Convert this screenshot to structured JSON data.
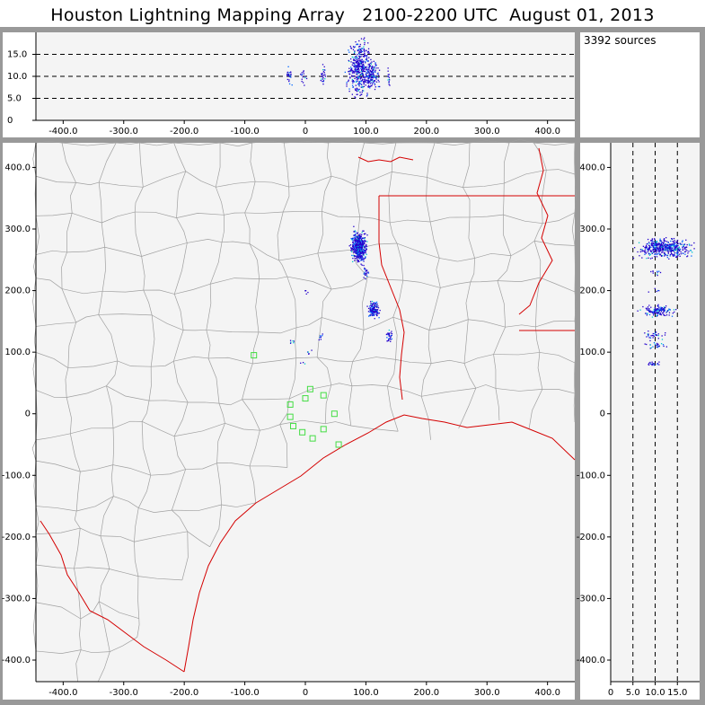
{
  "title": "Houston Lightning Mapping Array   2100-2200 UTC  August 01, 2013",
  "source_count_label": "3392 sources",
  "colors": {
    "frame": "#999999",
    "plot_bg": "#f4f4f4",
    "county_lines": "#a0a0a0",
    "boundary_lines": "#d40000",
    "station_markers": "#44dd44",
    "source_low": "#2200cc",
    "source_mid": "#0066ff",
    "source_high": "#00cccc"
  },
  "chart_data": [
    {
      "type": "scatter",
      "name_panel": "altitude-vs-east-west",
      "x_ticks": [
        "-400.0",
        "-300.0",
        "-200.0",
        "-100.0",
        "0",
        "100.0",
        "200.0",
        "300.0",
        "400.0"
      ],
      "y_ticks": [
        "0",
        "5.0",
        "10.0",
        "15.0"
      ],
      "xlim": [
        -445,
        445
      ],
      "ylim": [
        0,
        20
      ],
      "reference_lines_y": [
        5,
        10,
        15
      ],
      "clusters": [
        {
          "x": -28,
          "y": 10,
          "dx": 3,
          "dy": 1.5,
          "n": 25
        },
        {
          "x": -4,
          "y": 10,
          "dx": 3,
          "dy": 1.2,
          "n": 15
        },
        {
          "x": 28,
          "y": 10,
          "dx": 3,
          "dy": 1.5,
          "n": 25
        },
        {
          "x": 88,
          "y": 12,
          "dx": 12,
          "dy": 4,
          "n": 420
        },
        {
          "x": 110,
          "y": 10.5,
          "dx": 7,
          "dy": 2.2,
          "n": 140
        },
        {
          "x": 137,
          "y": 10,
          "dx": 2,
          "dy": 1.2,
          "n": 15
        }
      ]
    },
    {
      "type": "scatter",
      "name_panel": "plan-view",
      "x_ticks": [
        "-400.0",
        "-300.0",
        "-200.0",
        "-100.0",
        "0",
        "100.0",
        "200.0",
        "300.0",
        "400.0"
      ],
      "y_ticks": [
        "-400.0",
        "-300.0",
        "-200.0",
        "-100.0",
        "0",
        "100.0",
        "200.0",
        "300.0",
        "400.0"
      ],
      "xlim": [
        -445,
        445
      ],
      "ylim": [
        -435,
        440
      ],
      "stations": [
        {
          "x": -85,
          "y": 95
        },
        {
          "x": -25,
          "y": 15
        },
        {
          "x": -25,
          "y": -5
        },
        {
          "x": -20,
          "y": -20
        },
        {
          "x": -5,
          "y": -30
        },
        {
          "x": 0,
          "y": 25
        },
        {
          "x": 8,
          "y": 40
        },
        {
          "x": 12,
          "y": -40
        },
        {
          "x": 30,
          "y": -25
        },
        {
          "x": 30,
          "y": 30
        },
        {
          "x": 48,
          "y": 0
        },
        {
          "x": 55,
          "y": -50
        }
      ],
      "clusters": [
        {
          "x": 88,
          "y": 272,
          "dx": 8,
          "dy": 16,
          "n": 480
        },
        {
          "x": 112,
          "y": 170,
          "dx": 6,
          "dy": 8,
          "n": 140
        },
        {
          "x": 138,
          "y": 128,
          "dx": 3,
          "dy": 8,
          "n": 30
        },
        {
          "x": 98,
          "y": 230,
          "dx": 4,
          "dy": 6,
          "n": 20
        },
        {
          "x": 0,
          "y": 200,
          "dx": 2,
          "dy": 3,
          "n": 5
        },
        {
          "x": -25,
          "y": 120,
          "dx": 3,
          "dy": 5,
          "n": 6
        },
        {
          "x": 25,
          "y": 125,
          "dx": 4,
          "dy": 5,
          "n": 8
        },
        {
          "x": 5,
          "y": 100,
          "dx": 4,
          "dy": 4,
          "n": 5
        },
        {
          "x": -5,
          "y": 85,
          "dx": 3,
          "dy": 3,
          "n": 3
        }
      ]
    },
    {
      "type": "scatter",
      "name_panel": "north-south-vs-altitude",
      "x_ticks": [
        "0",
        "5.0",
        "10.0",
        "15.0"
      ],
      "y_ticks": [
        "-400.0",
        "-300.0",
        "-200.0",
        "-100.0",
        "0",
        "100.0",
        "200.0",
        "300.0",
        "400.0"
      ],
      "xlim": [
        0,
        20
      ],
      "ylim": [
        -435,
        440
      ],
      "reference_lines_x": [
        5,
        10,
        15
      ],
      "clusters": [
        {
          "x": 12,
          "y": 270,
          "dx": 3.8,
          "dy": 10,
          "n": 480
        },
        {
          "x": 10.5,
          "y": 168,
          "dx": 2.2,
          "dy": 6,
          "n": 140
        },
        {
          "x": 10,
          "y": 128,
          "dx": 1.8,
          "dy": 5,
          "n": 30
        },
        {
          "x": 10,
          "y": 112,
          "dx": 1.6,
          "dy": 3,
          "n": 25
        },
        {
          "x": 9.5,
          "y": 82,
          "dx": 1.2,
          "dy": 2,
          "n": 20
        },
        {
          "x": 10,
          "y": 200,
          "dx": 1,
          "dy": 3,
          "n": 5
        },
        {
          "x": 10,
          "y": 230,
          "dx": 1,
          "dy": 3,
          "n": 10
        }
      ]
    }
  ]
}
